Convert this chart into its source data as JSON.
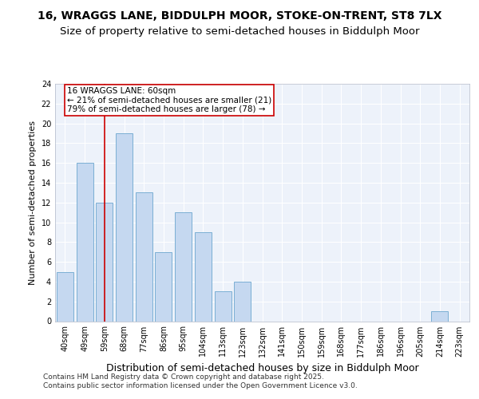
{
  "title_line1": "16, WRAGGS LANE, BIDDULPH MOOR, STOKE-ON-TRENT, ST8 7LX",
  "title_line2": "Size of property relative to semi-detached houses in Biddulph Moor",
  "xlabel": "Distribution of semi-detached houses by size in Biddulph Moor",
  "ylabel": "Number of semi-detached properties",
  "categories": [
    "40sqm",
    "49sqm",
    "59sqm",
    "68sqm",
    "77sqm",
    "86sqm",
    "95sqm",
    "104sqm",
    "113sqm",
    "123sqm",
    "132sqm",
    "141sqm",
    "150sqm",
    "159sqm",
    "168sqm",
    "177sqm",
    "186sqm",
    "196sqm",
    "205sqm",
    "214sqm",
    "223sqm"
  ],
  "values": [
    5,
    16,
    12,
    19,
    13,
    7,
    11,
    9,
    3,
    4,
    0,
    0,
    0,
    0,
    0,
    0,
    0,
    0,
    0,
    1,
    0
  ],
  "bar_color": "#c5d8f0",
  "bar_edge_color": "#7bafd4",
  "highlight_color": "#cc0000",
  "annotation_title": "16 WRAGGS LANE: 60sqm",
  "annotation_line1": "← 21% of semi-detached houses are smaller (21)",
  "annotation_line2": "79% of semi-detached houses are larger (78) →",
  "vline_x": 2,
  "ylim": [
    0,
    24
  ],
  "yticks": [
    0,
    2,
    4,
    6,
    8,
    10,
    12,
    14,
    16,
    18,
    20,
    22,
    24
  ],
  "footer": "Contains HM Land Registry data © Crown copyright and database right 2025.\nContains public sector information licensed under the Open Government Licence v3.0.",
  "bg_color": "#edf2fa",
  "grid_color": "#ffffff",
  "title_fontsize": 10,
  "subtitle_fontsize": 9.5,
  "tick_fontsize": 7,
  "ylabel_fontsize": 8,
  "xlabel_fontsize": 9,
  "annotation_fontsize": 7.5,
  "footer_fontsize": 6.5
}
